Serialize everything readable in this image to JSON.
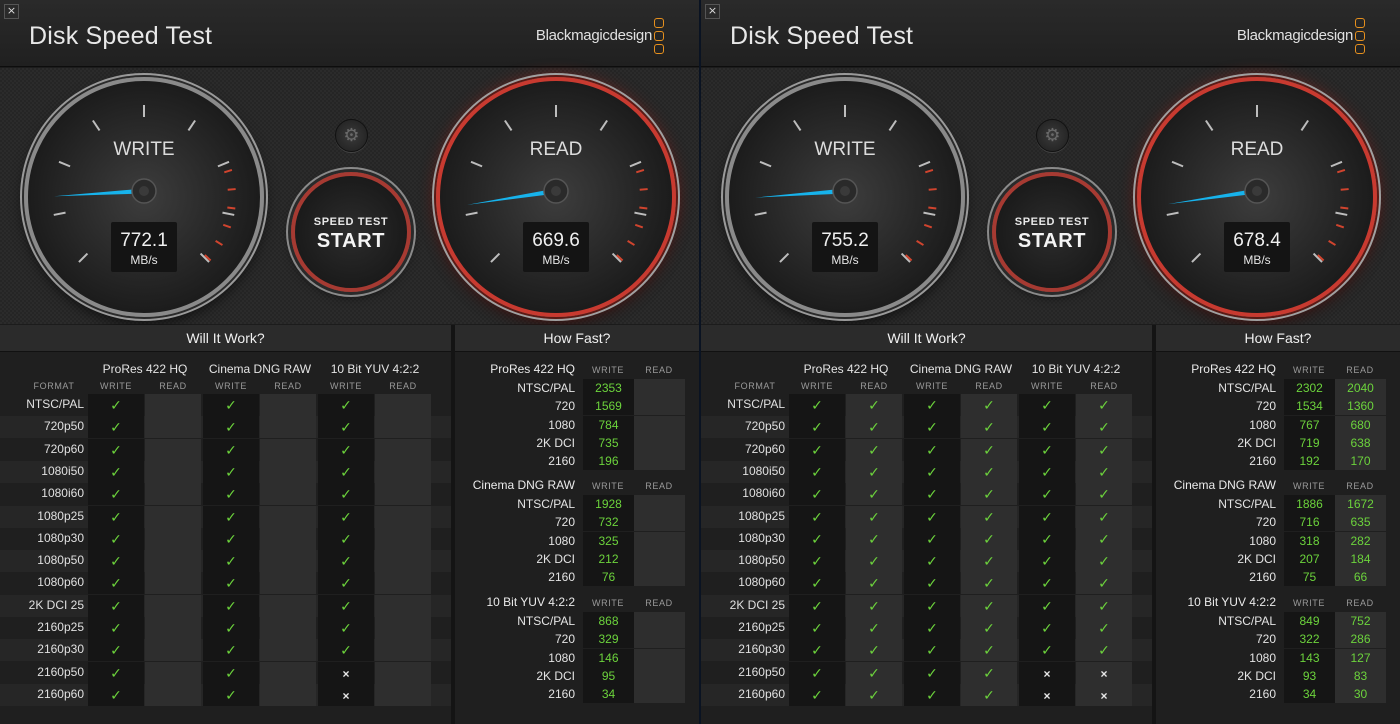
{
  "windows": [
    {
      "close_icon": "×",
      "title": "Disk Speed Test",
      "brand": "Blackmagicdesign",
      "write_gauge": {
        "label": "WRITE",
        "value": "772.1",
        "unit": "MB/s",
        "reading": 772.1
      },
      "read_gauge": {
        "label": "READ",
        "value": "669.6",
        "unit": "MB/s",
        "reading": 669.6
      },
      "start_button": {
        "line1": "SPEED TEST",
        "line2": "START"
      },
      "will_it_work": {
        "title": "Will It Work?",
        "format_label": "FORMAT",
        "write_label": "WRITE",
        "read_label": "READ",
        "codecs": [
          "ProRes 422 HQ",
          "Cinema DNG RAW",
          "10 Bit YUV 4:2:2"
        ],
        "rows": [
          {
            "format": "NTSC/PAL",
            "cells": [
              "ok",
              "",
              "ok",
              "",
              "ok",
              ""
            ]
          },
          {
            "format": "720p50",
            "cells": [
              "ok",
              "",
              "ok",
              "",
              "ok",
              ""
            ]
          },
          {
            "format": "720p60",
            "cells": [
              "ok",
              "",
              "ok",
              "",
              "ok",
              ""
            ]
          },
          {
            "format": "1080i50",
            "cells": [
              "ok",
              "",
              "ok",
              "",
              "ok",
              ""
            ]
          },
          {
            "format": "1080i60",
            "cells": [
              "ok",
              "",
              "ok",
              "",
              "ok",
              ""
            ]
          },
          {
            "format": "1080p25",
            "cells": [
              "ok",
              "",
              "ok",
              "",
              "ok",
              ""
            ]
          },
          {
            "format": "1080p30",
            "cells": [
              "ok",
              "",
              "ok",
              "",
              "ok",
              ""
            ]
          },
          {
            "format": "1080p50",
            "cells": [
              "ok",
              "",
              "ok",
              "",
              "ok",
              ""
            ]
          },
          {
            "format": "1080p60",
            "cells": [
              "ok",
              "",
              "ok",
              "",
              "ok",
              ""
            ]
          },
          {
            "format": "2K DCI 25",
            "cells": [
              "ok",
              "",
              "ok",
              "",
              "ok",
              ""
            ]
          },
          {
            "format": "2160p25",
            "cells": [
              "ok",
              "",
              "ok",
              "",
              "ok",
              ""
            ]
          },
          {
            "format": "2160p30",
            "cells": [
              "ok",
              "",
              "ok",
              "",
              "ok",
              ""
            ]
          },
          {
            "format": "2160p50",
            "cells": [
              "ok",
              "",
              "ok",
              "",
              "no",
              ""
            ]
          },
          {
            "format": "2160p60",
            "cells": [
              "ok",
              "",
              "ok",
              "",
              "no",
              ""
            ]
          }
        ]
      },
      "how_fast": {
        "title": "How Fast?",
        "write_label": "WRITE",
        "read_label": "READ",
        "sections": [
          {
            "codec": "ProRes 422 HQ",
            "rows": [
              {
                "format": "NTSC/PAL",
                "write": "2353",
                "read": ""
              },
              {
                "format": "720",
                "write": "1569",
                "read": ""
              },
              {
                "format": "1080",
                "write": "784",
                "read": ""
              },
              {
                "format": "2K DCI",
                "write": "735",
                "read": ""
              },
              {
                "format": "2160",
                "write": "196",
                "read": ""
              }
            ]
          },
          {
            "codec": "Cinema DNG RAW",
            "rows": [
              {
                "format": "NTSC/PAL",
                "write": "1928",
                "read": ""
              },
              {
                "format": "720",
                "write": "732",
                "read": ""
              },
              {
                "format": "1080",
                "write": "325",
                "read": ""
              },
              {
                "format": "2K DCI",
                "write": "212",
                "read": ""
              },
              {
                "format": "2160",
                "write": "76",
                "read": ""
              }
            ]
          },
          {
            "codec": "10 Bit YUV 4:2:2",
            "rows": [
              {
                "format": "NTSC/PAL",
                "write": "868",
                "read": ""
              },
              {
                "format": "720",
                "write": "329",
                "read": ""
              },
              {
                "format": "1080",
                "write": "146",
                "read": ""
              },
              {
                "format": "2K DCI",
                "write": "95",
                "read": ""
              },
              {
                "format": "2160",
                "write": "34",
                "read": ""
              }
            ]
          }
        ]
      }
    },
    {
      "close_icon": "×",
      "title": "Disk Speed Test",
      "brand": "Blackmagicdesign",
      "write_gauge": {
        "label": "WRITE",
        "value": "755.2",
        "unit": "MB/s",
        "reading": 755.2
      },
      "read_gauge": {
        "label": "READ",
        "value": "678.4",
        "unit": "MB/s",
        "reading": 678.4
      },
      "start_button": {
        "line1": "SPEED TEST",
        "line2": "START"
      },
      "will_it_work": {
        "title": "Will It Work?",
        "format_label": "FORMAT",
        "write_label": "WRITE",
        "read_label": "READ",
        "codecs": [
          "ProRes 422 HQ",
          "Cinema DNG RAW",
          "10 Bit YUV 4:2:2"
        ],
        "rows": [
          {
            "format": "NTSC/PAL",
            "cells": [
              "ok",
              "ok",
              "ok",
              "ok",
              "ok",
              "ok"
            ]
          },
          {
            "format": "720p50",
            "cells": [
              "ok",
              "ok",
              "ok",
              "ok",
              "ok",
              "ok"
            ]
          },
          {
            "format": "720p60",
            "cells": [
              "ok",
              "ok",
              "ok",
              "ok",
              "ok",
              "ok"
            ]
          },
          {
            "format": "1080i50",
            "cells": [
              "ok",
              "ok",
              "ok",
              "ok",
              "ok",
              "ok"
            ]
          },
          {
            "format": "1080i60",
            "cells": [
              "ok",
              "ok",
              "ok",
              "ok",
              "ok",
              "ok"
            ]
          },
          {
            "format": "1080p25",
            "cells": [
              "ok",
              "ok",
              "ok",
              "ok",
              "ok",
              "ok"
            ]
          },
          {
            "format": "1080p30",
            "cells": [
              "ok",
              "ok",
              "ok",
              "ok",
              "ok",
              "ok"
            ]
          },
          {
            "format": "1080p50",
            "cells": [
              "ok",
              "ok",
              "ok",
              "ok",
              "ok",
              "ok"
            ]
          },
          {
            "format": "1080p60",
            "cells": [
              "ok",
              "ok",
              "ok",
              "ok",
              "ok",
              "ok"
            ]
          },
          {
            "format": "2K DCI 25",
            "cells": [
              "ok",
              "ok",
              "ok",
              "ok",
              "ok",
              "ok"
            ]
          },
          {
            "format": "2160p25",
            "cells": [
              "ok",
              "ok",
              "ok",
              "ok",
              "ok",
              "ok"
            ]
          },
          {
            "format": "2160p30",
            "cells": [
              "ok",
              "ok",
              "ok",
              "ok",
              "ok",
              "ok"
            ]
          },
          {
            "format": "2160p50",
            "cells": [
              "ok",
              "ok",
              "ok",
              "ok",
              "no",
              "no"
            ]
          },
          {
            "format": "2160p60",
            "cells": [
              "ok",
              "ok",
              "ok",
              "ok",
              "no",
              "no"
            ]
          }
        ]
      },
      "how_fast": {
        "title": "How Fast?",
        "write_label": "WRITE",
        "read_label": "READ",
        "sections": [
          {
            "codec": "ProRes 422 HQ",
            "rows": [
              {
                "format": "NTSC/PAL",
                "write": "2302",
                "read": "2040"
              },
              {
                "format": "720",
                "write": "1534",
                "read": "1360"
              },
              {
                "format": "1080",
                "write": "767",
                "read": "680"
              },
              {
                "format": "2K DCI",
                "write": "719",
                "read": "638"
              },
              {
                "format": "2160",
                "write": "192",
                "read": "170"
              }
            ]
          },
          {
            "codec": "Cinema DNG RAW",
            "rows": [
              {
                "format": "NTSC/PAL",
                "write": "1886",
                "read": "1672"
              },
              {
                "format": "720",
                "write": "716",
                "read": "635"
              },
              {
                "format": "1080",
                "write": "318",
                "read": "282"
              },
              {
                "format": "2K DCI",
                "write": "207",
                "read": "184"
              },
              {
                "format": "2160",
                "write": "75",
                "read": "66"
              }
            ]
          },
          {
            "codec": "10 Bit YUV 4:2:2",
            "rows": [
              {
                "format": "NTSC/PAL",
                "write": "849",
                "read": "752"
              },
              {
                "format": "720",
                "write": "322",
                "read": "286"
              },
              {
                "format": "1080",
                "write": "143",
                "read": "127"
              },
              {
                "format": "2K DCI",
                "write": "93",
                "read": "83"
              },
              {
                "format": "2160",
                "write": "34",
                "read": "30"
              }
            ]
          }
        ]
      }
    }
  ],
  "colors": {
    "accent_orange": "#e6901e",
    "ok_green": "#6cd33c",
    "read_red": "#c83a30",
    "needle_blue": "#17b3ec"
  },
  "icons": {
    "ok_icon": "✓",
    "no_icon": "×",
    "gear_icon": "⚙"
  }
}
